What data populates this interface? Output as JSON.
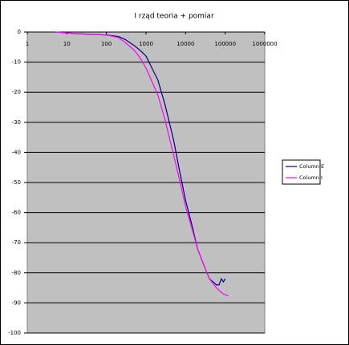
{
  "chart_data": {
    "type": "line",
    "title": "I rząd teoria + pomiar",
    "x": [
      5,
      10,
      20,
      50,
      100,
      200,
      300,
      500,
      700,
      1000,
      2000,
      3000,
      5000,
      7000,
      10000,
      15000,
      20000,
      30000,
      40000,
      60000,
      70000,
      80000,
      90000,
      100000,
      120000
    ],
    "series": [
      {
        "name": "Column E",
        "color": "#000080",
        "values": [
          0,
          -0.3,
          -0.6,
          -0.8,
          -1,
          -1.5,
          -2.5,
          -4.5,
          -6,
          -8,
          -16,
          -24,
          -36,
          -46,
          -56,
          -65,
          -72,
          -78,
          -82,
          -84,
          -84,
          -82,
          -83,
          -82,
          null
        ]
      },
      {
        "name": "Column I",
        "color": "#ff00ff",
        "values": [
          0,
          -0.3,
          -0.6,
          -0.8,
          -1,
          -1.8,
          -3.5,
          -6,
          -8.5,
          -12,
          -21,
          -29,
          -41,
          -49,
          -58,
          -66,
          -72,
          -78,
          -82,
          -85,
          -85.8,
          -86.5,
          -87,
          -87.3,
          -87.6
        ]
      }
    ],
    "xlim": [
      1,
      1000000
    ],
    "xticks": [
      1,
      10,
      100,
      1000,
      10000,
      100000,
      1000000
    ],
    "xscale": "log",
    "ylim": [
      -100,
      0
    ],
    "yticks": [
      0,
      -10,
      -20,
      -30,
      -40,
      -50,
      -60,
      -70,
      -80,
      -90,
      -100
    ],
    "grid": true,
    "legend": "right",
    "plot_background": "#c0c0c0"
  }
}
